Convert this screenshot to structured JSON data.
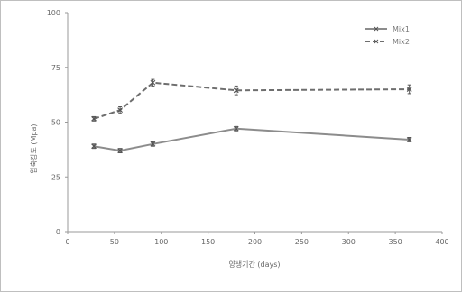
{
  "chart_data": {
    "type": "line",
    "title": "",
    "xlabel": "양생기간 (days)",
    "ylabel": "압축강도 (Mpa)",
    "xlim": [
      0,
      400
    ],
    "ylim": [
      0,
      100
    ],
    "x_ticks": [
      "0",
      "50",
      "100",
      "150",
      "200",
      "250",
      "300",
      "350",
      "400"
    ],
    "y_ticks": [
      "0",
      "25",
      "50",
      "75",
      "100"
    ],
    "grid": false,
    "legend_position": "top-right",
    "series": [
      {
        "name": "Mix1",
        "style": "solid",
        "marker": "x",
        "color": "#8c8c8c",
        "x": [
          28,
          56,
          91,
          180,
          365
        ],
        "y": [
          39,
          37,
          40,
          47,
          42
        ],
        "error": [
          1,
          1,
          1,
          1,
          1
        ]
      },
      {
        "name": "Mix2",
        "style": "dashed",
        "marker": "x",
        "color": "#6e6e6e",
        "x": [
          28,
          56,
          91,
          180,
          365
        ],
        "y": [
          51.5,
          55.5,
          68,
          64.5,
          65
        ],
        "error": [
          1,
          1.5,
          1.5,
          2,
          2
        ]
      }
    ]
  }
}
